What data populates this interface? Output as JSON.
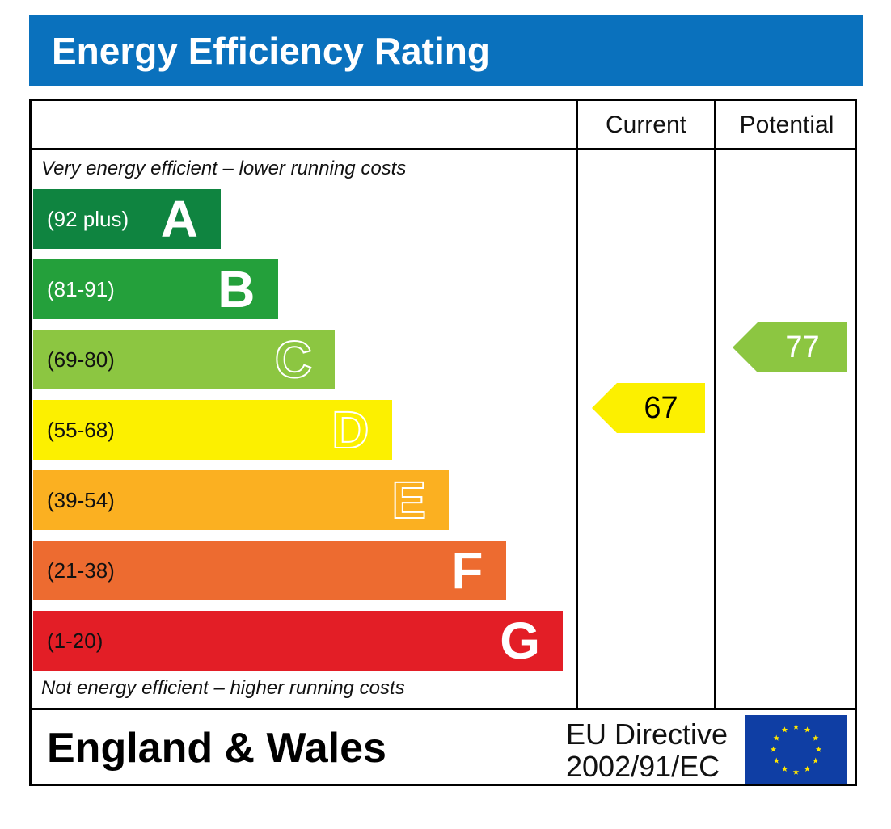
{
  "header": {
    "title": "Energy Efficiency Rating"
  },
  "columns": {
    "current": "Current",
    "potential": "Potential"
  },
  "notes": {
    "top": "Very energy efficient – lower running costs",
    "bottom": "Not energy efficient – higher running costs"
  },
  "footer": {
    "region": "England & Wales",
    "directive_line1": "EU Directive",
    "directive_line2": "2002/91/EC",
    "flag_icon": "eu-flag-icon"
  },
  "chart_data": {
    "type": "bar",
    "title": "Energy Efficiency Rating",
    "categories": [
      "A",
      "B",
      "C",
      "D",
      "E",
      "F",
      "G"
    ],
    "ranges": [
      "(92 plus)",
      "(81-91)",
      "(69-80)",
      "(55-68)",
      "(39-54)",
      "(21-38)",
      "(1-20)"
    ],
    "colors": [
      "#0f8440",
      "#24a03b",
      "#8cc641",
      "#fcf000",
      "#fbb021",
      "#ed6b30",
      "#e31e26"
    ],
    "range_text_colors": [
      "#ffffff",
      "#ffffff",
      "#111111",
      "#111111",
      "#111111",
      "#111111",
      "#111111"
    ],
    "outlined_letters": [
      "C",
      "D",
      "E"
    ],
    "current": {
      "label": "Current",
      "value": 67,
      "band": "D",
      "color": "#fcf000",
      "text_color": "#000000"
    },
    "potential": {
      "label": "Potential",
      "value": 77,
      "band": "C",
      "color": "#8cc641",
      "text_color": "#ffffff"
    }
  }
}
